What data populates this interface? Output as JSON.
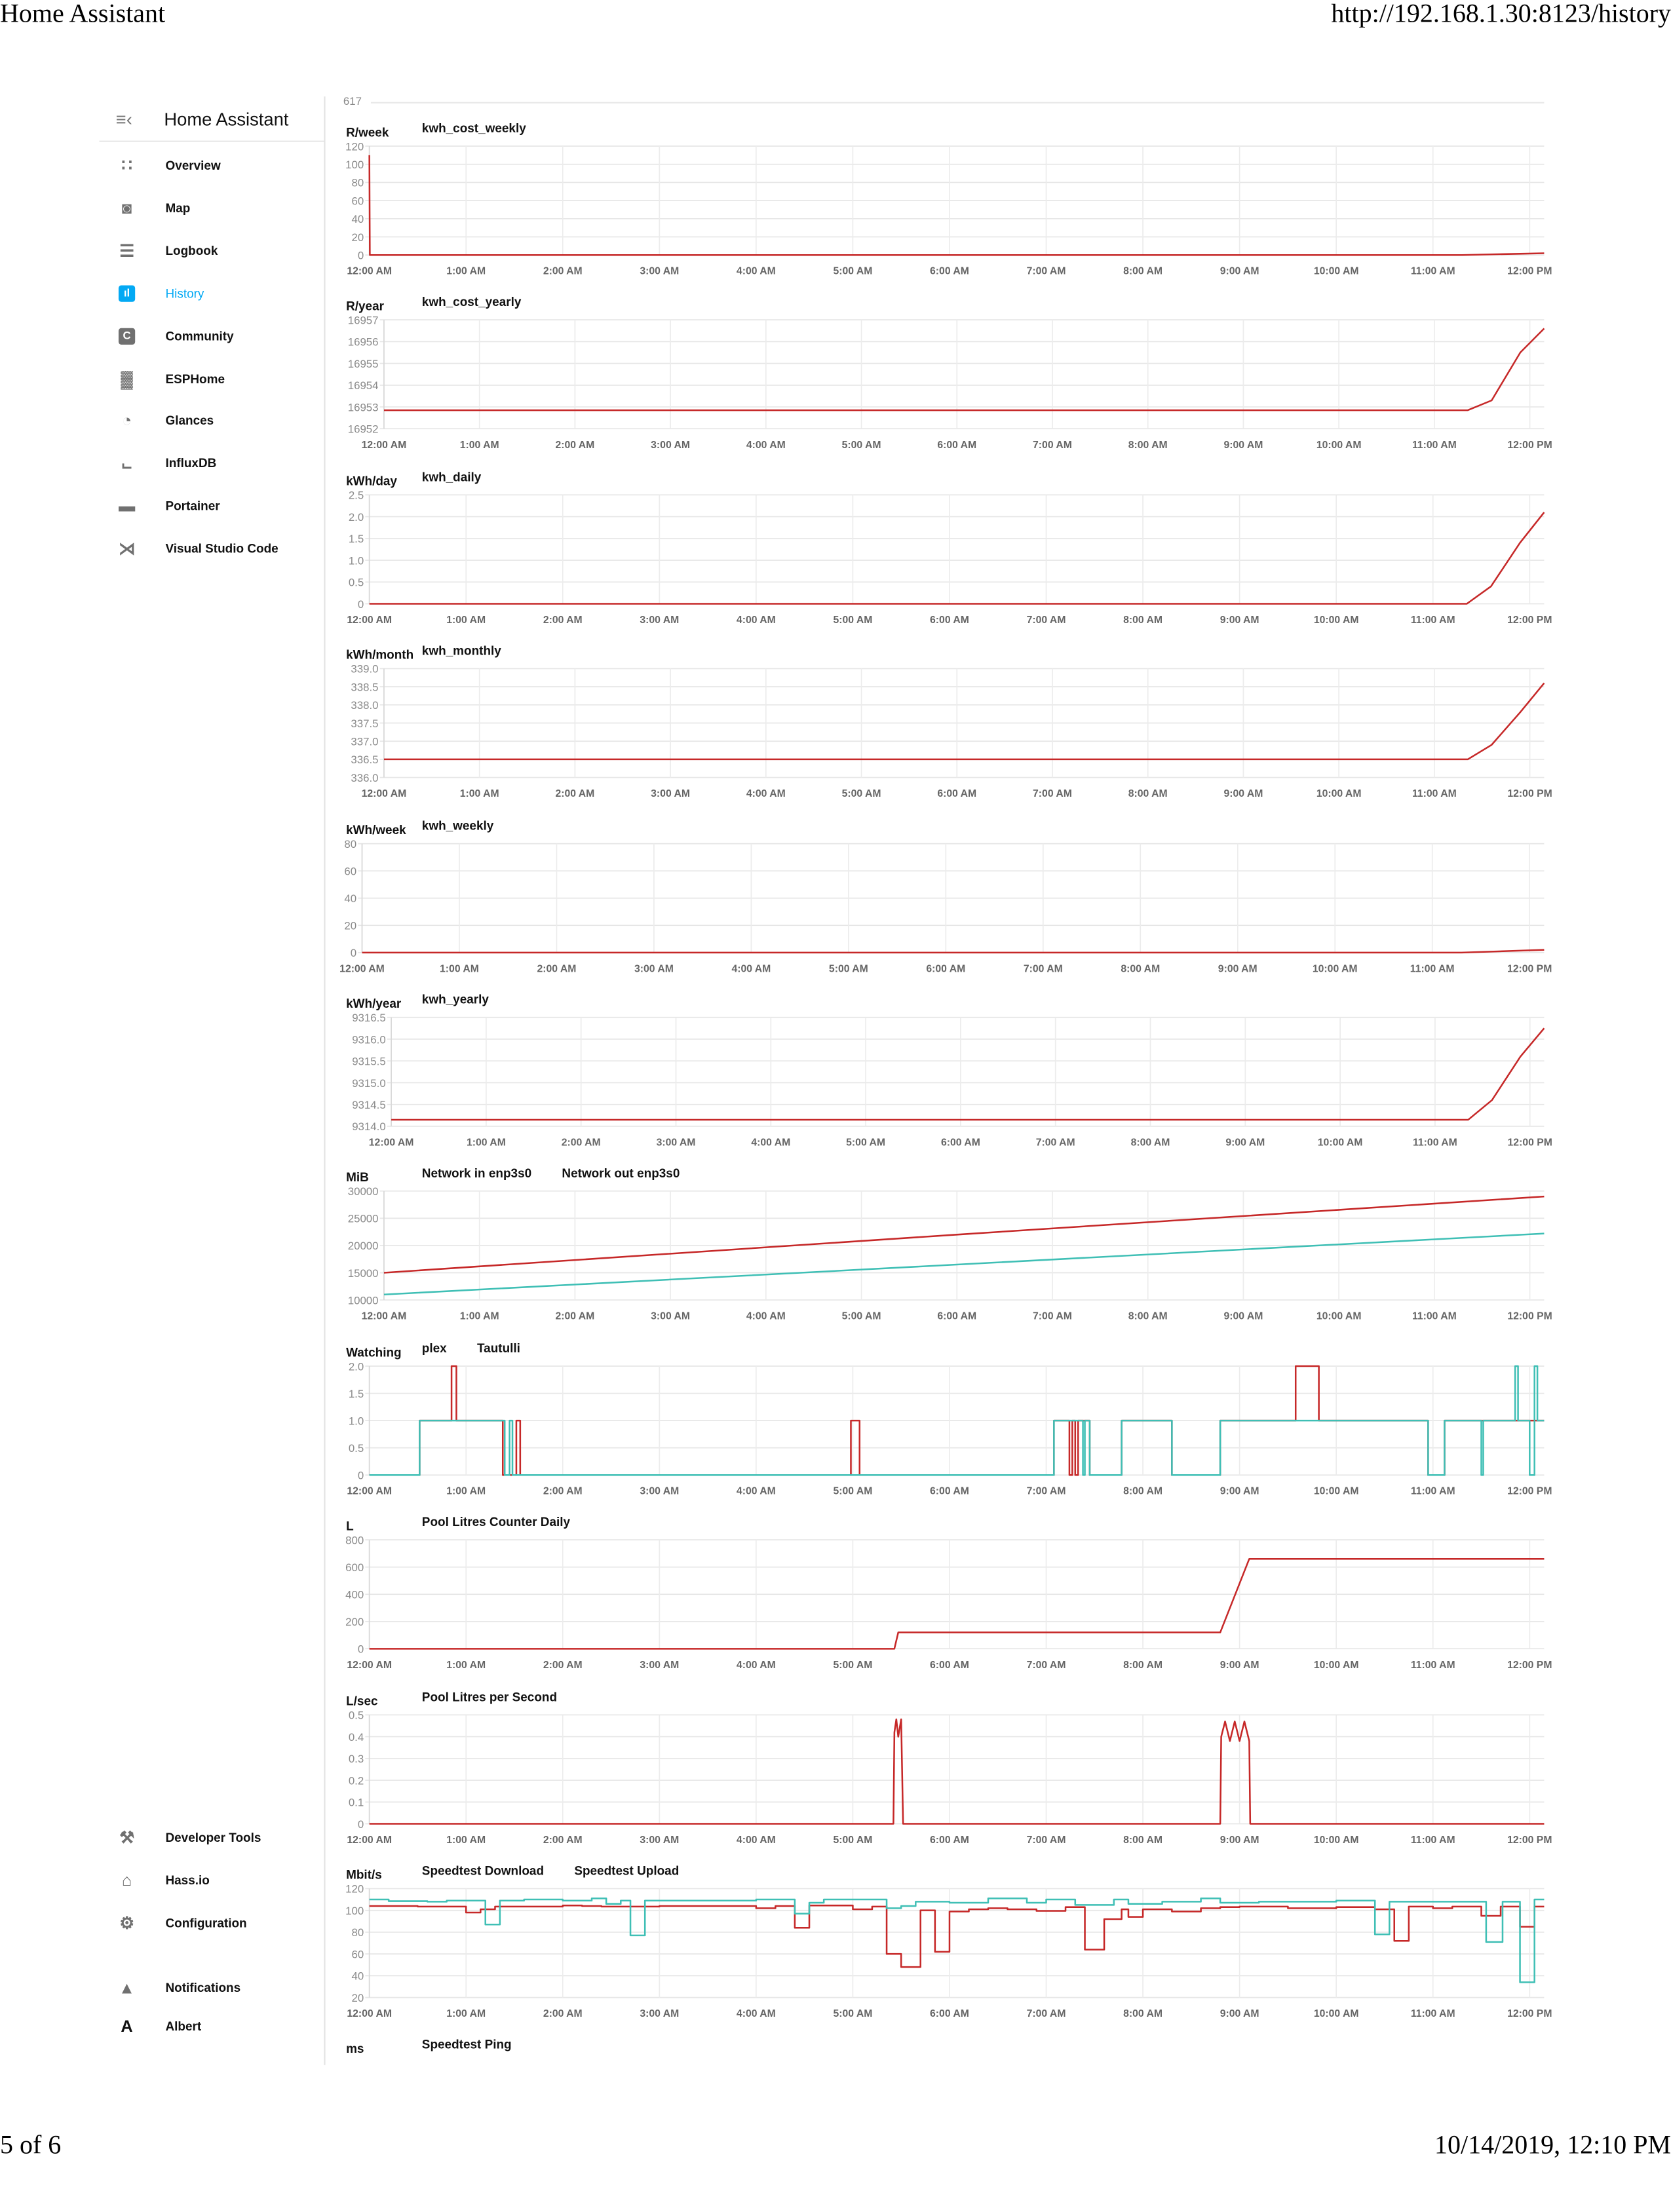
{
  "browser": {
    "title": "Home Assistant",
    "url": "http://192.168.1.30:8123/history",
    "page": "5 of 6",
    "datetime": "10/14/2019, 12:10 PM"
  },
  "colors": {
    "accent": "#03a9f4",
    "series_red": "#c62828",
    "series_teal": "#3fbfb5",
    "grid": "#e6e6e6"
  },
  "sidebar": {
    "title": "Home Assistant",
    "menu_icon": "menu-open-icon",
    "items": [
      {
        "label": "Overview",
        "icon": "view-dashboard-icon"
      },
      {
        "label": "Map",
        "icon": "account-location-icon"
      },
      {
        "label": "Logbook",
        "icon": "format-list-bulleted-icon"
      },
      {
        "label": "History",
        "icon": "chart-bar-icon",
        "active": true
      },
      {
        "label": "Community",
        "icon": "community-c-icon"
      },
      {
        "label": "ESPHome",
        "icon": "chip-icon"
      },
      {
        "label": "Glances",
        "icon": "speedometer-icon"
      },
      {
        "label": "InfluxDB",
        "icon": "chart-areaspline-icon"
      },
      {
        "label": "Portainer",
        "icon": "docker-icon"
      },
      {
        "label": "Visual Studio Code",
        "icon": "vscode-icon"
      }
    ],
    "bottom_items": [
      {
        "label": "Developer Tools",
        "icon": "hammer-icon"
      },
      {
        "label": "Hass.io",
        "icon": "home-assistant-icon"
      },
      {
        "label": "Configuration",
        "icon": "gear-icon"
      },
      {
        "label": "Notifications",
        "icon": "bell-icon"
      },
      {
        "label": "Albert",
        "icon": "user-initial-icon",
        "initial": "A"
      }
    ]
  },
  "history": {
    "prev_chart_tick": "617",
    "x_ticks": [
      "12:00 AM",
      "1:00 AM",
      "2:00 AM",
      "3:00 AM",
      "4:00 AM",
      "5:00 AM",
      "6:00 AM",
      "7:00 AM",
      "8:00 AM",
      "9:00 AM",
      "10:00 AM",
      "11:00 AM",
      "12:00 PM"
    ],
    "xlim_hours": [
      0,
      12.15
    ]
  },
  "chart_data": [
    {
      "type": "line",
      "unit": "R/week",
      "ylim": [
        0,
        120
      ],
      "yticks": [
        "0",
        "20",
        "40",
        "60",
        "80",
        "100",
        "120"
      ],
      "series": [
        {
          "name": "kwh_cost_weekly",
          "color": "#c62828",
          "step": false,
          "points": [
            [
              0,
              110
            ],
            [
              0.005,
              0
            ],
            [
              11.3,
              0
            ],
            [
              12.15,
              2
            ]
          ]
        }
      ]
    },
    {
      "type": "line",
      "unit": "R/year",
      "ylim": [
        16952,
        16957
      ],
      "yticks": [
        "16952",
        "16953",
        "16954",
        "16955",
        "16956",
        "16957"
      ],
      "series": [
        {
          "name": "kwh_cost_yearly",
          "color": "#c62828",
          "step": false,
          "points": [
            [
              0,
              16952.85
            ],
            [
              11.35,
              16952.85
            ],
            [
              11.6,
              16953.3
            ],
            [
              11.9,
              16955.5
            ],
            [
              12.15,
              16956.6
            ]
          ]
        }
      ]
    },
    {
      "type": "line",
      "unit": "kWh/day",
      "ylim": [
        0,
        2.5
      ],
      "yticks": [
        "0",
        "0.5",
        "1.0",
        "1.5",
        "2.0",
        "2.5"
      ],
      "series": [
        {
          "name": "kwh_daily",
          "color": "#c62828",
          "step": false,
          "points": [
            [
              0,
              0
            ],
            [
              11.35,
              0
            ],
            [
              11.6,
              0.4
            ],
            [
              11.9,
              1.4
            ],
            [
              12.15,
              2.1
            ]
          ]
        }
      ]
    },
    {
      "type": "line",
      "unit": "kWh/month",
      "ylim": [
        336.0,
        339.0
      ],
      "yticks": [
        "336.0",
        "336.5",
        "337.0",
        "337.5",
        "338.0",
        "338.5",
        "339.0"
      ],
      "series": [
        {
          "name": "kwh_monthly",
          "color": "#c62828",
          "step": false,
          "points": [
            [
              0,
              336.5
            ],
            [
              11.35,
              336.5
            ],
            [
              11.6,
              336.9
            ],
            [
              11.9,
              337.8
            ],
            [
              12.15,
              338.6
            ]
          ]
        }
      ]
    },
    {
      "type": "line",
      "unit": "kWh/week",
      "ylim": [
        0,
        80
      ],
      "yticks": [
        "0",
        "20",
        "40",
        "60",
        "80"
      ],
      "series": [
        {
          "name": "kwh_weekly",
          "color": "#c62828",
          "step": false,
          "points": [
            [
              0,
              0
            ],
            [
              11.3,
              0
            ],
            [
              12.15,
              2
            ]
          ]
        }
      ]
    },
    {
      "type": "line",
      "unit": "kWh/year",
      "ylim": [
        9314.0,
        9316.5
      ],
      "yticks": [
        "9314.0",
        "9314.5",
        "9315.0",
        "9315.5",
        "9316.0",
        "9316.5"
      ],
      "series": [
        {
          "name": "kwh_yearly",
          "color": "#c62828",
          "step": false,
          "points": [
            [
              0,
              9314.15
            ],
            [
              11.35,
              9314.15
            ],
            [
              11.6,
              9314.6
            ],
            [
              11.9,
              9315.6
            ],
            [
              12.15,
              9316.25
            ]
          ]
        }
      ]
    },
    {
      "type": "line",
      "unit": "MiB",
      "ylim": [
        10000,
        30000
      ],
      "yticks": [
        "10000",
        "15000",
        "20000",
        "25000",
        "30000"
      ],
      "series": [
        {
          "name": "Network in enp3s0",
          "color": "#c62828",
          "step": false,
          "points": [
            [
              0,
              15000
            ],
            [
              6,
              22000
            ],
            [
              12.15,
              29000
            ]
          ]
        },
        {
          "name": "Network out enp3s0",
          "color": "#3fbfb5",
          "step": false,
          "points": [
            [
              0,
              11000
            ],
            [
              6,
              16500
            ],
            [
              12.15,
              22200
            ]
          ]
        }
      ]
    },
    {
      "type": "line",
      "unit": "Watching",
      "ylim": [
        0,
        2
      ],
      "yticks": [
        "0",
        "0.5",
        "1.0",
        "1.5",
        "2.0"
      ],
      "series": [
        {
          "name": "plex",
          "color": "#c62828",
          "step": true,
          "points": [
            [
              0,
              0
            ],
            [
              0.52,
              1
            ],
            [
              0.85,
              2
            ],
            [
              0.9,
              1
            ],
            [
              1.38,
              0
            ],
            [
              1.52,
              1
            ],
            [
              1.56,
              0
            ],
            [
              4.98,
              1
            ],
            [
              5.07,
              0
            ],
            [
              7.08,
              1
            ],
            [
              7.24,
              0
            ],
            [
              7.27,
              1
            ],
            [
              7.3,
              0
            ],
            [
              7.33,
              1
            ],
            [
              7.45,
              0
            ],
            [
              7.78,
              1
            ],
            [
              8.3,
              0
            ],
            [
              8.8,
              1
            ],
            [
              9.58,
              2
            ],
            [
              9.82,
              1
            ],
            [
              10.95,
              0
            ],
            [
              11.12,
              1
            ],
            [
              12.15,
              1
            ]
          ]
        },
        {
          "name": "Tautulli",
          "color": "#3fbfb5",
          "step": true,
          "points": [
            [
              0,
              0
            ],
            [
              0.52,
              1
            ],
            [
              1.4,
              0
            ],
            [
              1.45,
              1
            ],
            [
              1.48,
              0
            ],
            [
              7.08,
              1
            ],
            [
              7.38,
              0
            ],
            [
              7.4,
              1
            ],
            [
              7.45,
              0
            ],
            [
              7.78,
              1
            ],
            [
              8.3,
              0
            ],
            [
              8.8,
              1
            ],
            [
              10.95,
              0
            ],
            [
              11.12,
              1
            ],
            [
              11.5,
              0
            ],
            [
              11.52,
              1
            ],
            [
              11.85,
              2
            ],
            [
              11.88,
              1
            ],
            [
              12.0,
              0
            ],
            [
              12.05,
              2
            ],
            [
              12.08,
              1
            ],
            [
              12.15,
              1
            ]
          ]
        }
      ]
    },
    {
      "type": "line",
      "unit": "L",
      "ylim": [
        0,
        800
      ],
      "yticks": [
        "0",
        "200",
        "400",
        "600",
        "800"
      ],
      "series": [
        {
          "name": "Pool Litres Counter Daily",
          "color": "#c62828",
          "step": false,
          "points": [
            [
              0,
              0
            ],
            [
              5.43,
              0
            ],
            [
              5.47,
              120
            ],
            [
              8.8,
              120
            ],
            [
              9.1,
              660
            ],
            [
              12.15,
              660
            ]
          ]
        }
      ]
    },
    {
      "type": "line",
      "unit": "L/sec",
      "ylim": [
        0,
        0.5
      ],
      "yticks": [
        "0",
        "0.1",
        "0.2",
        "0.3",
        "0.4",
        "0.5"
      ],
      "series": [
        {
          "name": "Pool Litres per Second",
          "color": "#c62828",
          "step": false,
          "points": [
            [
              0,
              0
            ],
            [
              5.42,
              0
            ],
            [
              5.43,
              0.42
            ],
            [
              5.45,
              0.48
            ],
            [
              5.47,
              0.4
            ],
            [
              5.5,
              0.48
            ],
            [
              5.52,
              0
            ],
            [
              8.8,
              0
            ],
            [
              8.81,
              0.4
            ],
            [
              8.85,
              0.47
            ],
            [
              8.9,
              0.38
            ],
            [
              8.95,
              0.47
            ],
            [
              9.0,
              0.38
            ],
            [
              9.05,
              0.47
            ],
            [
              9.1,
              0.38
            ],
            [
              9.11,
              0
            ],
            [
              12.15,
              0
            ]
          ]
        }
      ]
    },
    {
      "type": "line",
      "unit": "Mbit/s",
      "ylim": [
        20,
        120
      ],
      "yticks": [
        "20",
        "40",
        "60",
        "80",
        "100",
        "120"
      ],
      "series": [
        {
          "name": "Speedtest Download",
          "color": "#c62828",
          "step": true,
          "points": [
            [
              0,
              104
            ],
            [
              0.5,
              103.5
            ],
            [
              1.0,
              98
            ],
            [
              1.15,
              101
            ],
            [
              1.3,
              103.5
            ],
            [
              2.0,
              104.5
            ],
            [
              2.2,
              104
            ],
            [
              2.4,
              103.5
            ],
            [
              3.0,
              104
            ],
            [
              4.0,
              102
            ],
            [
              4.2,
              104
            ],
            [
              4.4,
              84
            ],
            [
              4.55,
              104.5
            ],
            [
              5.0,
              101
            ],
            [
              5.2,
              103.5
            ],
            [
              5.35,
              60
            ],
            [
              5.5,
              48
            ],
            [
              5.7,
              100
            ],
            [
              5.85,
              62
            ],
            [
              6.0,
              99
            ],
            [
              6.2,
              101
            ],
            [
              6.4,
              102
            ],
            [
              6.6,
              101
            ],
            [
              6.9,
              99.5
            ],
            [
              7.2,
              103
            ],
            [
              7.4,
              64
            ],
            [
              7.6,
              92
            ],
            [
              7.78,
              101
            ],
            [
              7.85,
              94
            ],
            [
              8.0,
              101
            ],
            [
              8.3,
              99
            ],
            [
              8.6,
              102
            ],
            [
              8.8,
              103
            ],
            [
              9.0,
              103.5
            ],
            [
              9.5,
              102
            ],
            [
              10.0,
              103
            ],
            [
              10.4,
              101
            ],
            [
              10.6,
              72
            ],
            [
              10.75,
              103.5
            ],
            [
              11.0,
              102
            ],
            [
              11.2,
              103.5
            ],
            [
              11.5,
              95
            ],
            [
              11.7,
              103.5
            ],
            [
              11.9,
              85
            ],
            [
              12.05,
              103.5
            ],
            [
              12.15,
              103.5
            ]
          ]
        },
        {
          "name": "Speedtest Upload",
          "color": "#3fbfb5",
          "step": true,
          "points": [
            [
              0,
              110
            ],
            [
              0.2,
              108.5
            ],
            [
              0.6,
              108
            ],
            [
              0.8,
              109
            ],
            [
              1.2,
              87
            ],
            [
              1.35,
              109
            ],
            [
              1.6,
              110
            ],
            [
              2.0,
              109
            ],
            [
              2.3,
              111
            ],
            [
              2.45,
              106
            ],
            [
              2.6,
              109
            ],
            [
              2.7,
              77
            ],
            [
              2.85,
              109
            ],
            [
              3.5,
              109
            ],
            [
              4.0,
              110
            ],
            [
              4.4,
              97
            ],
            [
              4.55,
              107
            ],
            [
              4.7,
              110
            ],
            [
              5.35,
              102
            ],
            [
              5.5,
              104
            ],
            [
              5.65,
              108
            ],
            [
              6.0,
              107
            ],
            [
              6.4,
              111
            ],
            [
              6.8,
              107
            ],
            [
              7.0,
              110
            ],
            [
              7.3,
              105
            ],
            [
              7.7,
              110
            ],
            [
              7.85,
              106
            ],
            [
              8.2,
              108
            ],
            [
              8.6,
              111
            ],
            [
              8.8,
              107
            ],
            [
              9.2,
              108
            ],
            [
              10.0,
              109
            ],
            [
              10.4,
              78
            ],
            [
              10.55,
              108
            ],
            [
              11.0,
              108
            ],
            [
              11.55,
              71
            ],
            [
              11.72,
              108
            ],
            [
              11.9,
              34
            ],
            [
              12.05,
              110
            ],
            [
              12.15,
              110
            ]
          ]
        }
      ]
    },
    {
      "type": "line",
      "unit": "ms",
      "series": [
        {
          "name": "Speedtest Ping",
          "color": "#c62828"
        }
      ]
    }
  ]
}
